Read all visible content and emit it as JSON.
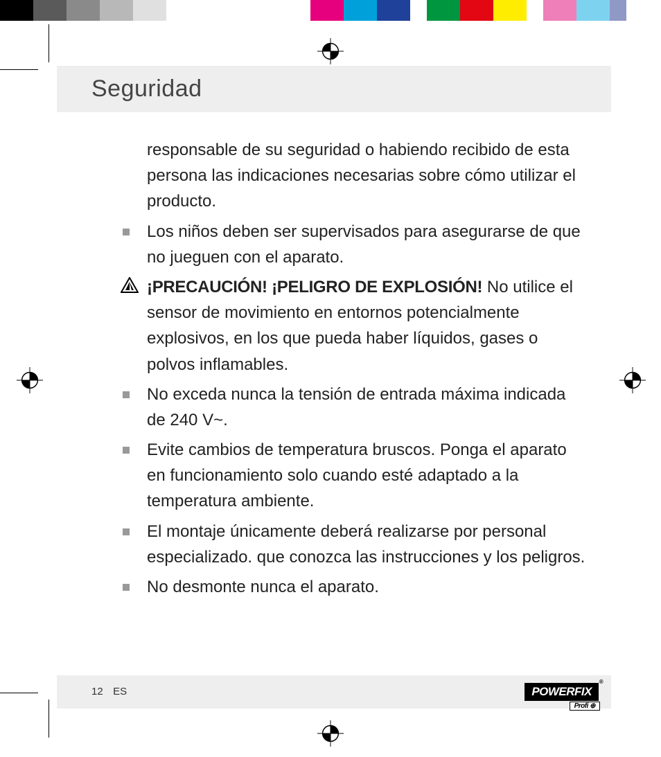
{
  "colorBar": {
    "swatches": [
      {
        "color": "#000000",
        "width": 48
      },
      {
        "color": "#5a5a5a",
        "width": 48
      },
      {
        "color": "#8a8a8a",
        "width": 48
      },
      {
        "color": "#b8b8b8",
        "width": 48
      },
      {
        "color": "#e0e0e0",
        "width": 48
      },
      {
        "color": "#ffffff",
        "width": 48
      },
      {
        "color": "#ffffff",
        "width": 160
      },
      {
        "color": "#e6007e",
        "width": 48
      },
      {
        "color": "#00a0da",
        "width": 48
      },
      {
        "color": "#20419a",
        "width": 48
      },
      {
        "color": "#ffffff",
        "width": 24
      },
      {
        "color": "#009640",
        "width": 48
      },
      {
        "color": "#e30613",
        "width": 48
      },
      {
        "color": "#ffed00",
        "width": 48
      },
      {
        "color": "#ffffff",
        "width": 24
      },
      {
        "color": "#ef7fb8",
        "width": 48
      },
      {
        "color": "#7dd2f0",
        "width": 48
      },
      {
        "color": "#9098c5",
        "width": 24
      }
    ]
  },
  "header": {
    "title": "Seguridad"
  },
  "body": {
    "p1": "responsable de su seguridad o habiendo recibido de esta persona las indicaciones necesarias sobre cómo utilizar el producto.",
    "p2": "Los niños deben ser supervisados para asegurarse de que no jueguen con el aparato.",
    "warn_label": "¡PRECAUCIÓN! ¡PELIGRO DE EXPLOSIÓN!",
    "warn_text": " No utilice el sensor de movimiento en entornos potencialmente explosivos, en los que pueda haber líquidos, gases o polvos inflamables.",
    "p4": "No exceda nunca la tensión de entrada máxima indicada de 240 V~.",
    "p5": "Evite cambios de temperatura bruscos. Ponga el aparato en funcionamiento solo cuando esté adaptado a la temperatura ambiente.",
    "p6": "El montaje únicamente deberá realizarse por personal especializado. que conozca las instrucciones y los peligros.",
    "p7": "No desmonte nunca el aparato."
  },
  "footer": {
    "page": "12",
    "lang": "ES",
    "brand": "POWERFIX",
    "brand_sub": "Profi ⊕"
  }
}
